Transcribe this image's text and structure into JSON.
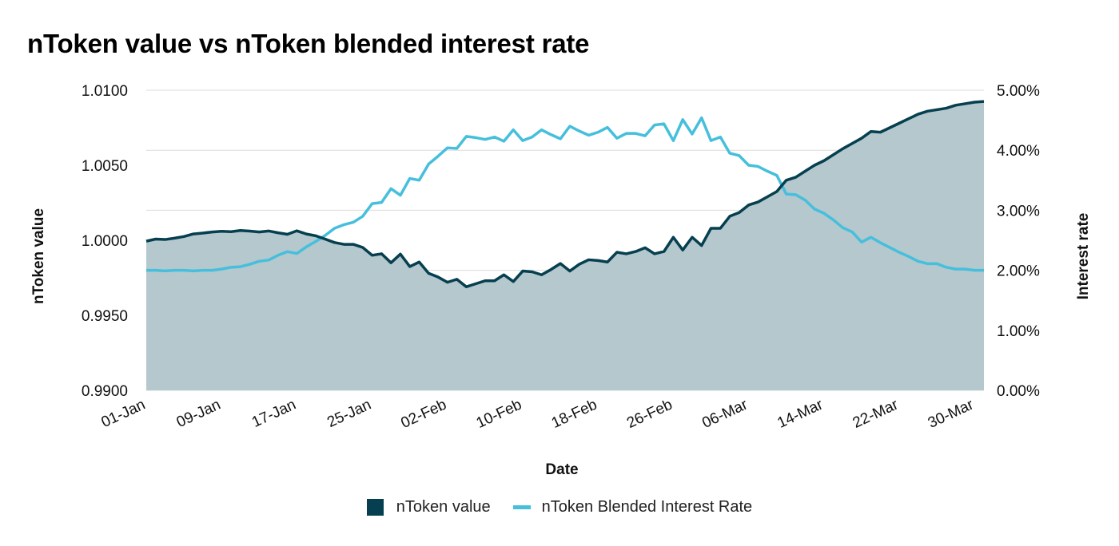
{
  "colors": {
    "ntoken_value_line": "#063f4f",
    "ntoken_value_fill": "#b4c8cd",
    "interest_rate_line": "#46bfdc",
    "grid": "#dcdcdc"
  },
  "chart_data": {
    "type": "area",
    "title": "nToken value vs nToken blended interest rate",
    "xlabel": "Date",
    "ylabel": "nToken value",
    "y2label": "Interest rate",
    "x_tick_labels": [
      "01-Jan",
      "09-Jan",
      "17-Jan",
      "25-Jan",
      "02-Feb",
      "10-Feb",
      "18-Feb",
      "26-Feb",
      "06-Mar",
      "14-Mar",
      "22-Mar",
      "30-Mar"
    ],
    "x_tick_index": [
      0,
      8,
      16,
      24,
      32,
      40,
      48,
      56,
      64,
      72,
      80,
      88
    ],
    "y_ticks": [
      "0.9900",
      "0.9950",
      "1.0000",
      "1.0050",
      "1.0100"
    ],
    "y_tick_values": [
      0.99,
      0.995,
      1.0,
      1.005,
      1.01
    ],
    "y2_ticks": [
      "0.00%",
      "1.00%",
      "2.00%",
      "3.00%",
      "4.00%",
      "5.00%"
    ],
    "y2_tick_values": [
      0,
      1,
      2,
      3,
      4,
      5
    ],
    "ylim": [
      0.99,
      1.01
    ],
    "y2lim": [
      0,
      5
    ],
    "grid": true,
    "legend_position": "bottom",
    "series": [
      {
        "name": "nToken value",
        "kind": "area",
        "axis": "left",
        "values": [
          0.99994,
          1.00008,
          1.00005,
          1.00014,
          1.00025,
          1.00042,
          1.00048,
          1.00055,
          1.0006,
          1.00057,
          1.00065,
          1.00061,
          1.00055,
          1.00062,
          1.0005,
          1.0004,
          1.00063,
          1.00042,
          1.0003,
          1.00008,
          0.99985,
          0.99973,
          0.99973,
          0.99952,
          0.999,
          0.9991,
          0.9985,
          0.99908,
          0.99825,
          0.99855,
          0.9978,
          0.99755,
          0.9972,
          0.9974,
          0.9969,
          0.9971,
          0.9973,
          0.9973,
          0.9977,
          0.99725,
          0.99795,
          0.9979,
          0.9977,
          0.99805,
          0.99845,
          0.99795,
          0.9984,
          0.9987,
          0.99865,
          0.99855,
          0.9992,
          0.9991,
          0.99925,
          0.9995,
          0.9991,
          0.99925,
          1.0002,
          0.99935,
          1.0002,
          0.99965,
          1.0008,
          1.0008,
          1.0016,
          1.00185,
          1.00235,
          1.00255,
          1.0029,
          1.00325,
          1.004,
          1.0042,
          1.0046,
          1.005,
          1.0053,
          1.0057,
          1.0061,
          1.00645,
          1.0068,
          1.00725,
          1.0072,
          1.0075,
          1.0078,
          1.0081,
          1.0084,
          1.0086,
          1.0087,
          1.0088,
          1.009,
          1.0091,
          1.0092,
          1.00925
        ]
      },
      {
        "name": "nToken Blended Interest Rate",
        "kind": "line",
        "axis": "right",
        "values": [
          2.0,
          2.0,
          1.99,
          2.0,
          2.0,
          1.99,
          2.0,
          2.0,
          2.02,
          2.05,
          2.06,
          2.1,
          2.15,
          2.17,
          2.25,
          2.31,
          2.28,
          2.39,
          2.48,
          2.58,
          2.7,
          2.76,
          2.8,
          2.9,
          3.11,
          3.13,
          3.36,
          3.25,
          3.53,
          3.5,
          3.77,
          3.9,
          4.04,
          4.03,
          4.23,
          4.21,
          4.18,
          4.22,
          4.15,
          4.34,
          4.16,
          4.22,
          4.34,
          4.26,
          4.19,
          4.4,
          4.32,
          4.25,
          4.3,
          4.38,
          4.2,
          4.28,
          4.28,
          4.24,
          4.42,
          4.44,
          4.16,
          4.51,
          4.27,
          4.54,
          4.16,
          4.22,
          3.95,
          3.91,
          3.75,
          3.73,
          3.65,
          3.58,
          3.27,
          3.26,
          3.17,
          3.02,
          2.95,
          2.84,
          2.71,
          2.64,
          2.47,
          2.55,
          2.46,
          2.38,
          2.3,
          2.23,
          2.15,
          2.11,
          2.11,
          2.05,
          2.02,
          2.02,
          2.0,
          2.0
        ]
      }
    ]
  }
}
